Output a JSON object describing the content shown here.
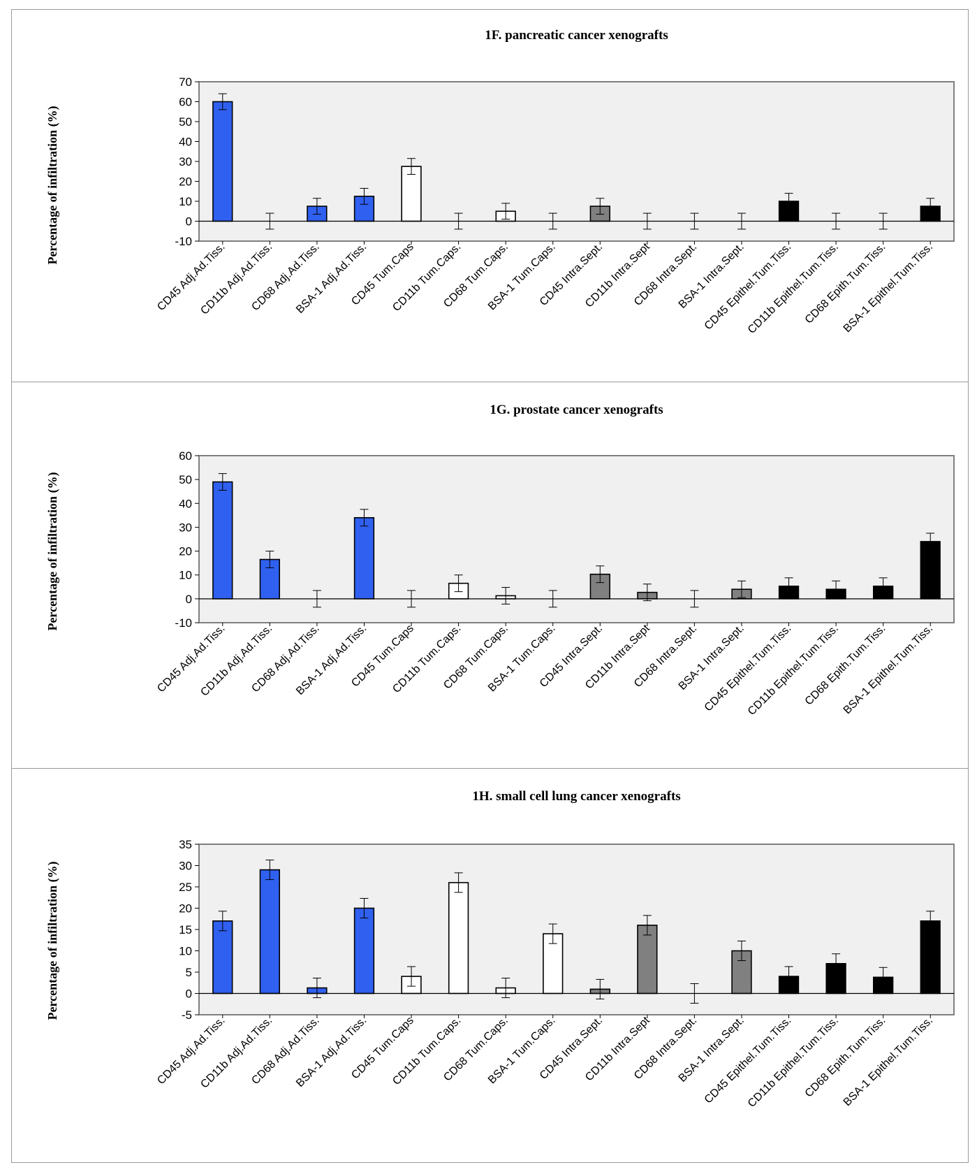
{
  "chart_data": [
    {
      "type": "bar",
      "title": "1F.  pancreatic cancer xenografts",
      "ylabel": "Percentage of infiltration (%)",
      "xlabel": "",
      "ylim": [
        -10,
        70
      ],
      "yticks": [
        70,
        60,
        50,
        40,
        30,
        20,
        10,
        0,
        -10
      ],
      "categories": [
        "CD45 Adj.Ad.Tiss.",
        "CD11b Adj.Ad.Tiss.",
        "CD68 Adj.Ad.Tiss.",
        "BSA-1 Adj.Ad.Tiss.",
        "CD45 Tum.Caps",
        "CD11b Tum.Caps.",
        "CD68 Tum.Caps.",
        "BSA-1 Tum.Caps.",
        "CD45 Intra.Sept.",
        "CD11b Intra.Sept",
        "CD68 Intra.Sept.",
        "BSA-1 Intra.Sept.",
        "CD45 Epithel.Tum.Tiss.",
        "CD11b Epithel.Tum.Tiss.",
        "CD68 Epith.Tum.Tiss.",
        "BSA-1 Epithel.Tum.Tiss."
      ],
      "values": [
        60,
        0,
        7.5,
        12.5,
        27.5,
        0,
        5,
        0,
        7.5,
        0,
        0,
        0,
        10,
        0,
        0,
        7.5
      ],
      "errors": [
        4,
        4,
        4,
        4,
        4,
        4,
        4,
        4,
        4,
        4,
        4,
        4,
        4,
        4,
        4,
        4
      ],
      "colors": [
        "#3060f0",
        "#3060f0",
        "#3060f0",
        "#3060f0",
        "#ffffff",
        "#ffffff",
        "#ffffff",
        "#ffffff",
        "#808080",
        "#808080",
        "#808080",
        "#808080",
        "#000000",
        "#000000",
        "#000000",
        "#000000"
      ]
    },
    {
      "type": "bar",
      "title": "1G.  prostate cancer xenografts",
      "ylabel": "Percentage of infiltration (%)",
      "xlabel": "",
      "ylim": [
        -10,
        60
      ],
      "yticks": [
        60,
        50,
        40,
        30,
        20,
        10,
        0,
        -10
      ],
      "categories": [
        "CD45 Adj.Ad.Tiss.",
        "CD11b Adj.Ad.Tiss.",
        "CD68 Adj.Ad.Tiss.",
        "BSA-1 Adj.Ad.Tiss.",
        "CD45 Tum.Caps",
        "CD11b Tum.Caps.",
        "CD68 Tum.Caps.",
        "BSA-1 Tum.Caps.",
        "CD45 Intra.Sept.",
        "CD11b Intra.Sept",
        "CD68 Intra.Sept.",
        "BSA-1 Intra.Sept.",
        "CD45 Epithel.Tum.Tiss.",
        "CD11b Epithel.Tum.Tiss.",
        "CD68 Epith.Tum.Tiss.",
        "BSA-1 Epithel.Tum.Tiss."
      ],
      "values": [
        49,
        16.5,
        0,
        34,
        0,
        6.5,
        1.3,
        0,
        10.3,
        2.7,
        0,
        4,
        5.3,
        4,
        5.3,
        24
      ],
      "errors": [
        3.5,
        3.5,
        3.5,
        3.5,
        3.5,
        3.5,
        3.5,
        3.5,
        3.5,
        3.5,
        3.5,
        3.5,
        3.5,
        3.5,
        3.5,
        3.5
      ],
      "colors": [
        "#3060f0",
        "#3060f0",
        "#3060f0",
        "#3060f0",
        "#ffffff",
        "#ffffff",
        "#ffffff",
        "#ffffff",
        "#808080",
        "#808080",
        "#808080",
        "#808080",
        "#000000",
        "#000000",
        "#000000",
        "#000000"
      ]
    },
    {
      "type": "bar",
      "title": "1H.  small cell lung cancer xenografts",
      "ylabel": "Percentage of infiltration (%)",
      "xlabel": "",
      "ylim": [
        -5,
        35
      ],
      "yticks": [
        35,
        30,
        25,
        20,
        15,
        10,
        5,
        0,
        -5
      ],
      "categories": [
        "CD45 Adj.Ad.Tiss.",
        "CD11b Adj.Ad.Tiss.",
        "CD68 Adj.Ad.Tiss.",
        "BSA-1 Adj.Ad.Tiss.",
        "CD45 Tum.Caps",
        "CD11b Tum.Caps.",
        "CD68 Tum.Caps.",
        "BSA-1 Tum.Caps.",
        "CD45 Intra.Sept.",
        "CD11b Intra.Sept",
        "CD68 Intra.Sept.",
        "BSA-1 Intra.Sept.",
        "CD45 Epithel.Tum.Tiss.",
        "CD11b Epithel.Tum.Tiss.",
        "CD68 Epith.Tum.Tiss.",
        "BSA-1 Epithel.Tum.Tiss."
      ],
      "values": [
        17,
        29,
        1.3,
        20,
        4,
        26,
        1.3,
        14,
        1,
        16,
        0,
        10,
        4,
        7,
        3.8,
        17
      ],
      "errors": [
        2.3,
        2.3,
        2.3,
        2.3,
        2.3,
        2.3,
        2.3,
        2.3,
        2.3,
        2.3,
        2.3,
        2.3,
        2.3,
        2.3,
        2.3,
        2.3
      ],
      "colors": [
        "#3060f0",
        "#3060f0",
        "#3060f0",
        "#3060f0",
        "#ffffff",
        "#ffffff",
        "#ffffff",
        "#ffffff",
        "#808080",
        "#808080",
        "#808080",
        "#808080",
        "#000000",
        "#000000",
        "#000000",
        "#000000"
      ]
    }
  ]
}
